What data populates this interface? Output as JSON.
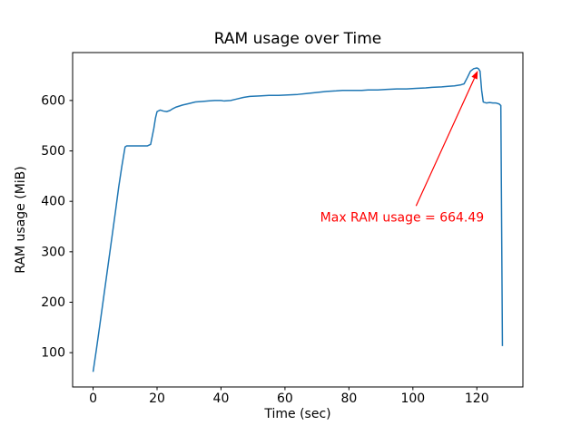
{
  "chart_data": {
    "type": "line",
    "title": "RAM usage over Time",
    "xlabel": "Time (sec)",
    "ylabel": "RAM usage (MiB)",
    "xlim": [
      -6.4,
      134.4
    ],
    "ylim": [
      32,
      695
    ],
    "xticks": [
      0,
      20,
      40,
      60,
      80,
      100,
      120
    ],
    "yticks": [
      100,
      200,
      300,
      400,
      500,
      600
    ],
    "grid": false,
    "legend_position": "none",
    "line_color": "#1f77b4",
    "line_width": 1.5,
    "max_value": 664.49,
    "series": [
      {
        "name": "RAM usage",
        "points": [
          [
            0,
            62
          ],
          [
            1,
            105
          ],
          [
            2,
            150
          ],
          [
            3,
            196
          ],
          [
            4,
            242
          ],
          [
            5,
            288
          ],
          [
            6,
            334
          ],
          [
            7,
            380
          ],
          [
            8,
            428
          ],
          [
            9,
            470
          ],
          [
            10,
            508
          ],
          [
            10.5,
            510
          ],
          [
            17,
            510
          ],
          [
            18,
            513
          ],
          [
            19,
            545
          ],
          [
            19.5,
            565
          ],
          [
            20,
            578
          ],
          [
            21,
            581
          ],
          [
            22,
            579
          ],
          [
            23,
            578
          ],
          [
            24,
            580
          ],
          [
            25,
            584
          ],
          [
            26,
            587
          ],
          [
            28,
            591
          ],
          [
            30,
            594
          ],
          [
            32,
            597
          ],
          [
            34,
            598
          ],
          [
            36,
            599
          ],
          [
            38,
            600
          ],
          [
            40,
            600
          ],
          [
            41,
            599
          ],
          [
            43,
            600
          ],
          [
            45,
            603
          ],
          [
            47,
            606
          ],
          [
            49,
            608
          ],
          [
            52,
            609
          ],
          [
            55,
            610
          ],
          [
            58,
            610
          ],
          [
            61,
            611
          ],
          [
            64,
            612
          ],
          [
            67,
            614
          ],
          [
            70,
            616
          ],
          [
            73,
            618
          ],
          [
            76,
            619
          ],
          [
            78,
            620
          ],
          [
            81,
            620
          ],
          [
            84,
            620
          ],
          [
            86,
            621
          ],
          [
            89,
            621
          ],
          [
            92,
            622
          ],
          [
            95,
            623
          ],
          [
            98,
            623
          ],
          [
            101,
            624
          ],
          [
            104,
            625
          ],
          [
            106,
            626
          ],
          [
            109,
            627
          ],
          [
            111,
            628
          ],
          [
            113,
            629
          ],
          [
            115,
            631
          ],
          [
            116,
            633
          ],
          [
            117,
            645
          ],
          [
            118,
            658
          ],
          [
            119,
            663
          ],
          [
            120,
            664.49
          ],
          [
            120.5,
            663
          ],
          [
            121,
            658
          ],
          [
            121.5,
            620
          ],
          [
            122,
            597
          ],
          [
            123,
            595
          ],
          [
            124,
            596
          ],
          [
            125,
            595
          ],
          [
            126,
            595
          ],
          [
            127,
            593
          ],
          [
            127.5,
            590
          ],
          [
            128,
            113
          ]
        ]
      }
    ],
    "annotation": {
      "text": "Max RAM usage = 664.49",
      "color": "#ff0000",
      "text_xy": [
        71,
        368
      ],
      "arrow_tail_xy": [
        101,
        391
      ],
      "arrow_tip_xy": [
        120.3,
        659
      ]
    }
  }
}
